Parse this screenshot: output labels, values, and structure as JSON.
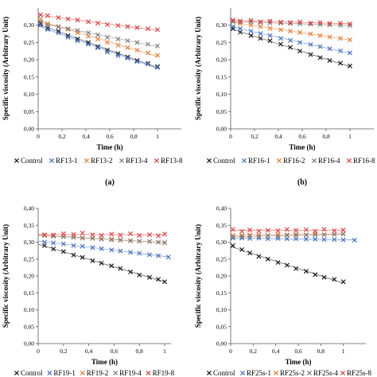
{
  "chart_data": [
    {
      "type": "scatter",
      "panel_label": "(a)",
      "xlabel": "Time (h)",
      "ylabel": "Specific viscosity (Arbitrary Unit)",
      "xlim": [
        0,
        1.2
      ],
      "ylim": [
        0,
        0.35
      ],
      "x_ticks": [
        "0",
        "0,2",
        "0,4",
        "0,6",
        "0,8",
        "1"
      ],
      "y_ticks": [
        "0,00",
        "0,05",
        "0,10",
        "0,15",
        "0,20",
        "0,25",
        "0,30"
      ],
      "trendlines": true,
      "legend_position": "bottom",
      "series": [
        {
          "name": "Control",
          "color": "#1a1a1a",
          "x": [
            0.02,
            0.08,
            0.17,
            0.25,
            0.33,
            0.42,
            0.5,
            0.58,
            0.67,
            0.75,
            0.83,
            0.92,
            1.0
          ],
          "y": [
            0.305,
            0.292,
            0.283,
            0.27,
            0.26,
            0.25,
            0.238,
            0.228,
            0.218,
            0.208,
            0.198,
            0.19,
            0.18
          ]
        },
        {
          "name": "RF13-1",
          "color": "#4472c4",
          "x": [
            0.02,
            0.08,
            0.17,
            0.25,
            0.33,
            0.42,
            0.5,
            0.58,
            0.67,
            0.75,
            0.83,
            0.92,
            1.0
          ],
          "y": [
            0.3,
            0.288,
            0.278,
            0.265,
            0.255,
            0.245,
            0.235,
            0.222,
            0.212,
            0.205,
            0.195,
            0.188,
            0.178
          ]
        },
        {
          "name": "RF13-2",
          "color": "#ed7d31",
          "x": [
            0.02,
            0.08,
            0.17,
            0.25,
            0.33,
            0.42,
            0.5,
            0.58,
            0.67,
            0.75,
            0.83,
            0.92,
            1.0
          ],
          "y": [
            0.318,
            0.305,
            0.296,
            0.288,
            0.278,
            0.268,
            0.26,
            0.25,
            0.242,
            0.235,
            0.228,
            0.22,
            0.213
          ]
        },
        {
          "name": "RF13-4",
          "color": "#7f7f7f",
          "x": [
            0.02,
            0.08,
            0.17,
            0.25,
            0.33,
            0.42,
            0.5,
            0.58,
            0.67,
            0.75,
            0.83,
            0.92,
            1.0
          ],
          "y": [
            0.31,
            0.3,
            0.295,
            0.29,
            0.285,
            0.278,
            0.272,
            0.265,
            0.26,
            0.255,
            0.25,
            0.245,
            0.24
          ]
        },
        {
          "name": "RF13-8",
          "color": "#e84040",
          "x": [
            0.02,
            0.08,
            0.17,
            0.25,
            0.33,
            0.42,
            0.5,
            0.58,
            0.67,
            0.75,
            0.83,
            0.92,
            1.0
          ],
          "y": [
            0.33,
            0.328,
            0.322,
            0.318,
            0.315,
            0.31,
            0.306,
            0.302,
            0.299,
            0.296,
            0.293,
            0.29,
            0.287
          ]
        }
      ]
    },
    {
      "type": "scatter",
      "panel_label": "(b)",
      "xlabel": "Time (h)",
      "ylabel": "Specific viscosity (Arbitrary Unit)",
      "xlim": [
        0,
        1.2
      ],
      "ylim": [
        0,
        0.35
      ],
      "x_ticks": [
        "0",
        "0,2",
        "0,4",
        "0,6",
        "0,8",
        "1"
      ],
      "y_ticks": [
        "0,00",
        "0,05",
        "0,10",
        "0,15",
        "0,20",
        "0,25",
        "0,30"
      ],
      "trendlines": true,
      "legend_position": "bottom",
      "series": [
        {
          "name": "Control",
          "color": "#1a1a1a",
          "x": [
            0.02,
            0.08,
            0.17,
            0.25,
            0.33,
            0.42,
            0.5,
            0.58,
            0.67,
            0.75,
            0.83,
            0.92,
            1.0
          ],
          "y": [
            0.29,
            0.28,
            0.27,
            0.262,
            0.255,
            0.245,
            0.236,
            0.225,
            0.215,
            0.206,
            0.198,
            0.19,
            0.182
          ]
        },
        {
          "name": "RF16-1",
          "color": "#4472c4",
          "x": [
            0.02,
            0.08,
            0.17,
            0.25,
            0.33,
            0.42,
            0.5,
            0.58,
            0.67,
            0.75,
            0.83,
            0.92,
            1.0
          ],
          "y": [
            0.296,
            0.29,
            0.283,
            0.276,
            0.27,
            0.262,
            0.256,
            0.25,
            0.244,
            0.238,
            0.232,
            0.226,
            0.22
          ]
        },
        {
          "name": "RF16-2",
          "color": "#ed7d31",
          "x": [
            0.02,
            0.08,
            0.17,
            0.25,
            0.33,
            0.42,
            0.5,
            0.58,
            0.67,
            0.75,
            0.83,
            0.92,
            1.0
          ],
          "y": [
            0.31,
            0.305,
            0.3,
            0.296,
            0.291,
            0.287,
            0.283,
            0.279,
            0.275,
            0.27,
            0.266,
            0.262,
            0.258
          ]
        },
        {
          "name": "RF16-4",
          "color": "#7f7f7f",
          "x": [
            0.02,
            0.08,
            0.17,
            0.25,
            0.33,
            0.42,
            0.5,
            0.58,
            0.67,
            0.75,
            0.83,
            0.92,
            1.0
          ],
          "y": [
            0.31,
            0.31,
            0.309,
            0.308,
            0.307,
            0.306,
            0.305,
            0.304,
            0.303,
            0.302,
            0.301,
            0.3,
            0.299
          ]
        },
        {
          "name": "RF16-8",
          "color": "#e84040",
          "x": [
            0.02,
            0.08,
            0.17,
            0.25,
            0.33,
            0.42,
            0.5,
            0.58,
            0.67,
            0.75,
            0.83,
            0.92,
            1.0
          ],
          "y": [
            0.315,
            0.312,
            0.314,
            0.31,
            0.312,
            0.309,
            0.308,
            0.31,
            0.306,
            0.308,
            0.305,
            0.306,
            0.304
          ]
        }
      ]
    },
    {
      "type": "scatter",
      "panel_label": "",
      "xlabel": "Time (h)",
      "ylabel": "Specific viscosity (Arbitrary Unit)",
      "xlim": [
        0,
        1.05
      ],
      "ylim": [
        0,
        0.4
      ],
      "x_ticks": [
        "0",
        "0,2",
        "0,4",
        "0,6",
        "0,8",
        "1"
      ],
      "y_ticks": [
        "0,00",
        "0,05",
        "0,10",
        "0,15",
        "0,20",
        "0,25",
        "0,30",
        "0,35",
        "0,40"
      ],
      "trendlines": true,
      "legend_position": "bottom",
      "series": [
        {
          "name": "Control",
          "color": "#1a1a1a",
          "x": [
            0.05,
            0.12,
            0.2,
            0.28,
            0.35,
            0.43,
            0.5,
            0.58,
            0.65,
            0.73,
            0.8,
            0.88,
            0.95,
            1.0
          ],
          "y": [
            0.29,
            0.28,
            0.272,
            0.262,
            0.255,
            0.245,
            0.238,
            0.23,
            0.222,
            0.212,
            0.203,
            0.196,
            0.19,
            0.183
          ]
        },
        {
          "name": "RF19-1",
          "color": "#4472c4",
          "x": [
            0.05,
            0.12,
            0.2,
            0.28,
            0.35,
            0.43,
            0.5,
            0.58,
            0.65,
            0.73,
            0.8,
            0.88,
            0.95,
            1.03
          ],
          "y": [
            0.3,
            0.298,
            0.295,
            0.29,
            0.288,
            0.284,
            0.281,
            0.277,
            0.274,
            0.27,
            0.267,
            0.263,
            0.26,
            0.256
          ]
        },
        {
          "name": "RF19-2",
          "color": "#ed7d31",
          "x": [
            0.05,
            0.12,
            0.2,
            0.28,
            0.35,
            0.43,
            0.5,
            0.58,
            0.65,
            0.73,
            0.8,
            0.88,
            0.95,
            1.0
          ],
          "y": [
            0.32,
            0.318,
            0.317,
            0.315,
            0.313,
            0.312,
            0.31,
            0.309,
            0.307,
            0.305,
            0.303,
            0.302,
            0.3,
            0.298
          ]
        },
        {
          "name": "RF19-4",
          "color": "#7f7f7f",
          "x": [
            0.05,
            0.12,
            0.2,
            0.28,
            0.35,
            0.43,
            0.5,
            0.58,
            0.65,
            0.73,
            0.8,
            0.88,
            0.95,
            1.0
          ],
          "y": [
            0.32,
            0.318,
            0.316,
            0.314,
            0.312,
            0.311,
            0.309,
            0.307,
            0.306,
            0.304,
            0.303,
            0.302,
            0.3,
            0.299
          ]
        },
        {
          "name": "RF19-8",
          "color": "#e84040",
          "x": [
            0.05,
            0.12,
            0.2,
            0.28,
            0.35,
            0.43,
            0.5,
            0.58,
            0.65,
            0.73,
            0.8,
            0.88,
            0.95,
            1.0
          ],
          "y": [
            0.322,
            0.321,
            0.325,
            0.323,
            0.327,
            0.322,
            0.32,
            0.324,
            0.321,
            0.325,
            0.32,
            0.322,
            0.319,
            0.324
          ]
        }
      ]
    },
    {
      "type": "scatter",
      "panel_label": "",
      "xlabel": "Time (h)",
      "ylabel": "Specific viscosity (Arbitrary Unit)",
      "xlim": [
        0,
        1.2
      ],
      "ylim": [
        0,
        0.4
      ],
      "x_ticks": [
        "0",
        "0,2",
        "0,4",
        "0,6",
        "0,8",
        "1"
      ],
      "y_ticks": [
        "0,00",
        "0,05",
        "0,10",
        "0,15",
        "0,20",
        "0,25",
        "0,30",
        "0,35",
        "0,40"
      ],
      "trendlines": true,
      "legend_position": "bottom",
      "series": [
        {
          "name": "Control",
          "color": "#1a1a1a",
          "x": [
            0.02,
            0.1,
            0.17,
            0.25,
            0.33,
            0.42,
            0.5,
            0.58,
            0.67,
            0.75,
            0.83,
            0.92,
            1.0
          ],
          "y": [
            0.29,
            0.278,
            0.268,
            0.258,
            0.25,
            0.24,
            0.232,
            0.222,
            0.214,
            0.204,
            0.196,
            0.19,
            0.183
          ]
        },
        {
          "name": "RF25s-1",
          "color": "#4472c4",
          "x": [
            0.02,
            0.1,
            0.17,
            0.25,
            0.33,
            0.42,
            0.5,
            0.58,
            0.67,
            0.75,
            0.83,
            0.92,
            1.0,
            1.1
          ],
          "y": [
            0.312,
            0.312,
            0.311,
            0.312,
            0.31,
            0.311,
            0.31,
            0.31,
            0.309,
            0.309,
            0.308,
            0.308,
            0.307,
            0.306
          ]
        },
        {
          "name": "RF25s-2",
          "color": "#ed7d31",
          "x": [
            0.02,
            0.1,
            0.17,
            0.25,
            0.33,
            0.42,
            0.5,
            0.58,
            0.67,
            0.75,
            0.83,
            0.92,
            1.0
          ],
          "y": [
            0.32,
            0.32,
            0.321,
            0.322,
            0.32,
            0.323,
            0.322,
            0.324,
            0.322,
            0.325,
            0.323,
            0.324,
            0.325
          ]
        },
        {
          "name": "RF25s-4",
          "color": "#7f7f7f",
          "x": [
            0.02,
            0.1,
            0.17,
            0.25,
            0.33,
            0.42,
            0.5,
            0.58,
            0.67,
            0.75,
            0.83,
            0.92,
            1.0
          ],
          "y": [
            0.315,
            0.316,
            0.318,
            0.317,
            0.319,
            0.318,
            0.32,
            0.32,
            0.321,
            0.322,
            0.322,
            0.323,
            0.324
          ]
        },
        {
          "name": "RF25s-8",
          "color": "#e84040",
          "x": [
            0.02,
            0.1,
            0.17,
            0.25,
            0.33,
            0.42,
            0.5,
            0.58,
            0.67,
            0.75,
            0.83,
            0.92,
            1.0
          ],
          "y": [
            0.338,
            0.332,
            0.336,
            0.333,
            0.335,
            0.334,
            0.338,
            0.335,
            0.337,
            0.333,
            0.338,
            0.334,
            0.336
          ]
        }
      ]
    }
  ]
}
